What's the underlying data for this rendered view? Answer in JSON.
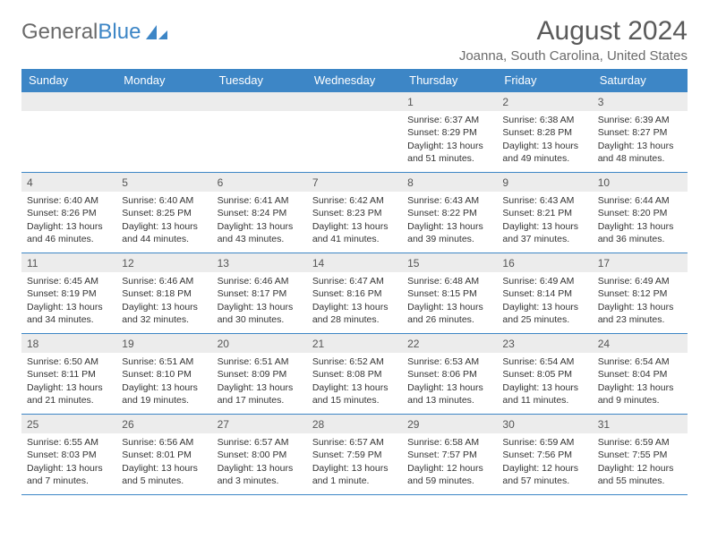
{
  "logo": {
    "text1": "General",
    "text2": "Blue"
  },
  "title": "August 2024",
  "location": "Joanna, South Carolina, United States",
  "colors": {
    "header_bg": "#3d86c6",
    "header_fg": "#ffffff",
    "daynum_bg": "#ececec",
    "border": "#3d86c6",
    "text": "#3a3a3a"
  },
  "days_of_week": [
    "Sunday",
    "Monday",
    "Tuesday",
    "Wednesday",
    "Thursday",
    "Friday",
    "Saturday"
  ],
  "weeks": [
    [
      null,
      null,
      null,
      null,
      {
        "n": "1",
        "sr": "6:37 AM",
        "ss": "8:29 PM",
        "dl": "13 hours and 51 minutes."
      },
      {
        "n": "2",
        "sr": "6:38 AM",
        "ss": "8:28 PM",
        "dl": "13 hours and 49 minutes."
      },
      {
        "n": "3",
        "sr": "6:39 AM",
        "ss": "8:27 PM",
        "dl": "13 hours and 48 minutes."
      }
    ],
    [
      {
        "n": "4",
        "sr": "6:40 AM",
        "ss": "8:26 PM",
        "dl": "13 hours and 46 minutes."
      },
      {
        "n": "5",
        "sr": "6:40 AM",
        "ss": "8:25 PM",
        "dl": "13 hours and 44 minutes."
      },
      {
        "n": "6",
        "sr": "6:41 AM",
        "ss": "8:24 PM",
        "dl": "13 hours and 43 minutes."
      },
      {
        "n": "7",
        "sr": "6:42 AM",
        "ss": "8:23 PM",
        "dl": "13 hours and 41 minutes."
      },
      {
        "n": "8",
        "sr": "6:43 AM",
        "ss": "8:22 PM",
        "dl": "13 hours and 39 minutes."
      },
      {
        "n": "9",
        "sr": "6:43 AM",
        "ss": "8:21 PM",
        "dl": "13 hours and 37 minutes."
      },
      {
        "n": "10",
        "sr": "6:44 AM",
        "ss": "8:20 PM",
        "dl": "13 hours and 36 minutes."
      }
    ],
    [
      {
        "n": "11",
        "sr": "6:45 AM",
        "ss": "8:19 PM",
        "dl": "13 hours and 34 minutes."
      },
      {
        "n": "12",
        "sr": "6:46 AM",
        "ss": "8:18 PM",
        "dl": "13 hours and 32 minutes."
      },
      {
        "n": "13",
        "sr": "6:46 AM",
        "ss": "8:17 PM",
        "dl": "13 hours and 30 minutes."
      },
      {
        "n": "14",
        "sr": "6:47 AM",
        "ss": "8:16 PM",
        "dl": "13 hours and 28 minutes."
      },
      {
        "n": "15",
        "sr": "6:48 AM",
        "ss": "8:15 PM",
        "dl": "13 hours and 26 minutes."
      },
      {
        "n": "16",
        "sr": "6:49 AM",
        "ss": "8:14 PM",
        "dl": "13 hours and 25 minutes."
      },
      {
        "n": "17",
        "sr": "6:49 AM",
        "ss": "8:12 PM",
        "dl": "13 hours and 23 minutes."
      }
    ],
    [
      {
        "n": "18",
        "sr": "6:50 AM",
        "ss": "8:11 PM",
        "dl": "13 hours and 21 minutes."
      },
      {
        "n": "19",
        "sr": "6:51 AM",
        "ss": "8:10 PM",
        "dl": "13 hours and 19 minutes."
      },
      {
        "n": "20",
        "sr": "6:51 AM",
        "ss": "8:09 PM",
        "dl": "13 hours and 17 minutes."
      },
      {
        "n": "21",
        "sr": "6:52 AM",
        "ss": "8:08 PM",
        "dl": "13 hours and 15 minutes."
      },
      {
        "n": "22",
        "sr": "6:53 AM",
        "ss": "8:06 PM",
        "dl": "13 hours and 13 minutes."
      },
      {
        "n": "23",
        "sr": "6:54 AM",
        "ss": "8:05 PM",
        "dl": "13 hours and 11 minutes."
      },
      {
        "n": "24",
        "sr": "6:54 AM",
        "ss": "8:04 PM",
        "dl": "13 hours and 9 minutes."
      }
    ],
    [
      {
        "n": "25",
        "sr": "6:55 AM",
        "ss": "8:03 PM",
        "dl": "13 hours and 7 minutes."
      },
      {
        "n": "26",
        "sr": "6:56 AM",
        "ss": "8:01 PM",
        "dl": "13 hours and 5 minutes."
      },
      {
        "n": "27",
        "sr": "6:57 AM",
        "ss": "8:00 PM",
        "dl": "13 hours and 3 minutes."
      },
      {
        "n": "28",
        "sr": "6:57 AM",
        "ss": "7:59 PM",
        "dl": "13 hours and 1 minute."
      },
      {
        "n": "29",
        "sr": "6:58 AM",
        "ss": "7:57 PM",
        "dl": "12 hours and 59 minutes."
      },
      {
        "n": "30",
        "sr": "6:59 AM",
        "ss": "7:56 PM",
        "dl": "12 hours and 57 minutes."
      },
      {
        "n": "31",
        "sr": "6:59 AM",
        "ss": "7:55 PM",
        "dl": "12 hours and 55 minutes."
      }
    ]
  ],
  "labels": {
    "sunrise": "Sunrise: ",
    "sunset": "Sunset: ",
    "daylight": "Daylight: "
  }
}
